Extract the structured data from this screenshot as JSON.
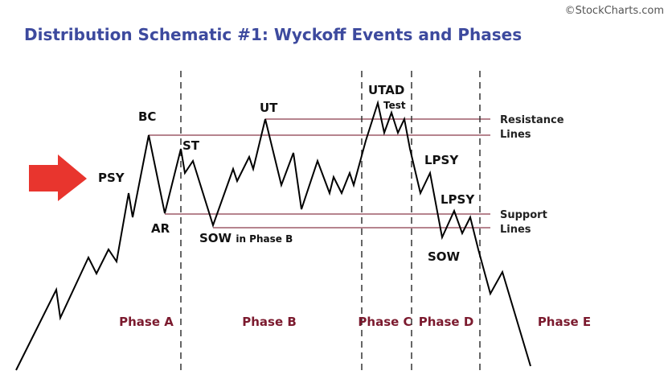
{
  "watermark": "©StockCharts.com",
  "title": "Distribution Schematic #1: Wyckoff Events and Phases",
  "events": [
    {
      "label": "PSY"
    },
    {
      "label": "BC"
    },
    {
      "label": "ST"
    },
    {
      "label": "AR"
    },
    {
      "label": "UT"
    },
    {
      "label": "SOW",
      "note": "in Phase B"
    },
    {
      "label": "UTAD"
    },
    {
      "label": "Test"
    },
    {
      "label": "LPSY"
    },
    {
      "label": "LPSY"
    },
    {
      "label": "SOW"
    }
  ],
  "levels": [
    {
      "label": "Resistance",
      "sub": "Lines"
    },
    {
      "label": "Support",
      "sub": "Lines"
    }
  ],
  "phases": [
    "Phase A",
    "Phase B",
    "Phase C",
    "Phase D",
    "Phase E"
  ]
}
